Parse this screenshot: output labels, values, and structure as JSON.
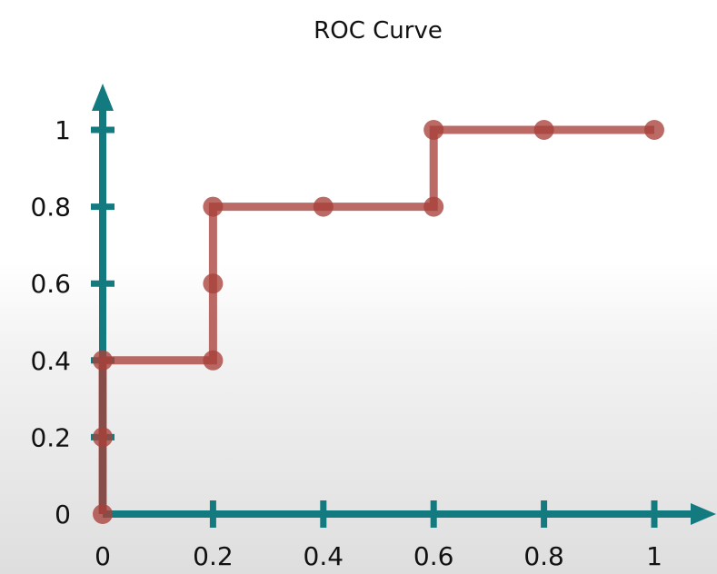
{
  "chart_data": {
    "type": "line",
    "title": "ROC Curve",
    "xlabel": "",
    "ylabel": "",
    "xlim": [
      0,
      1
    ],
    "ylim": [
      0,
      1
    ],
    "grid": false,
    "legend": "none",
    "x_ticks": [
      "0",
      "0.2",
      "0.4",
      "0.6",
      "0.8",
      "1"
    ],
    "y_ticks": [
      "0",
      "0.2",
      "0.4",
      "0.6",
      "0.8",
      "1"
    ],
    "series": [
      {
        "style": "step",
        "points": [
          {
            "x": 0,
            "y": 0
          },
          {
            "x": 0,
            "y": 0.2
          },
          {
            "x": 0,
            "y": 0.4
          },
          {
            "x": 0.2,
            "y": 0.4
          },
          {
            "x": 0.2,
            "y": 0.6
          },
          {
            "x": 0.2,
            "y": 0.8
          },
          {
            "x": 0.4,
            "y": 0.8
          },
          {
            "x": 0.6,
            "y": 0.8
          },
          {
            "x": 0.6,
            "y": 1
          },
          {
            "x": 0.8,
            "y": 1
          },
          {
            "x": 1,
            "y": 1
          }
        ]
      }
    ],
    "colors": {
      "axis": "#137a80",
      "curve": "#a8403a"
    }
  }
}
